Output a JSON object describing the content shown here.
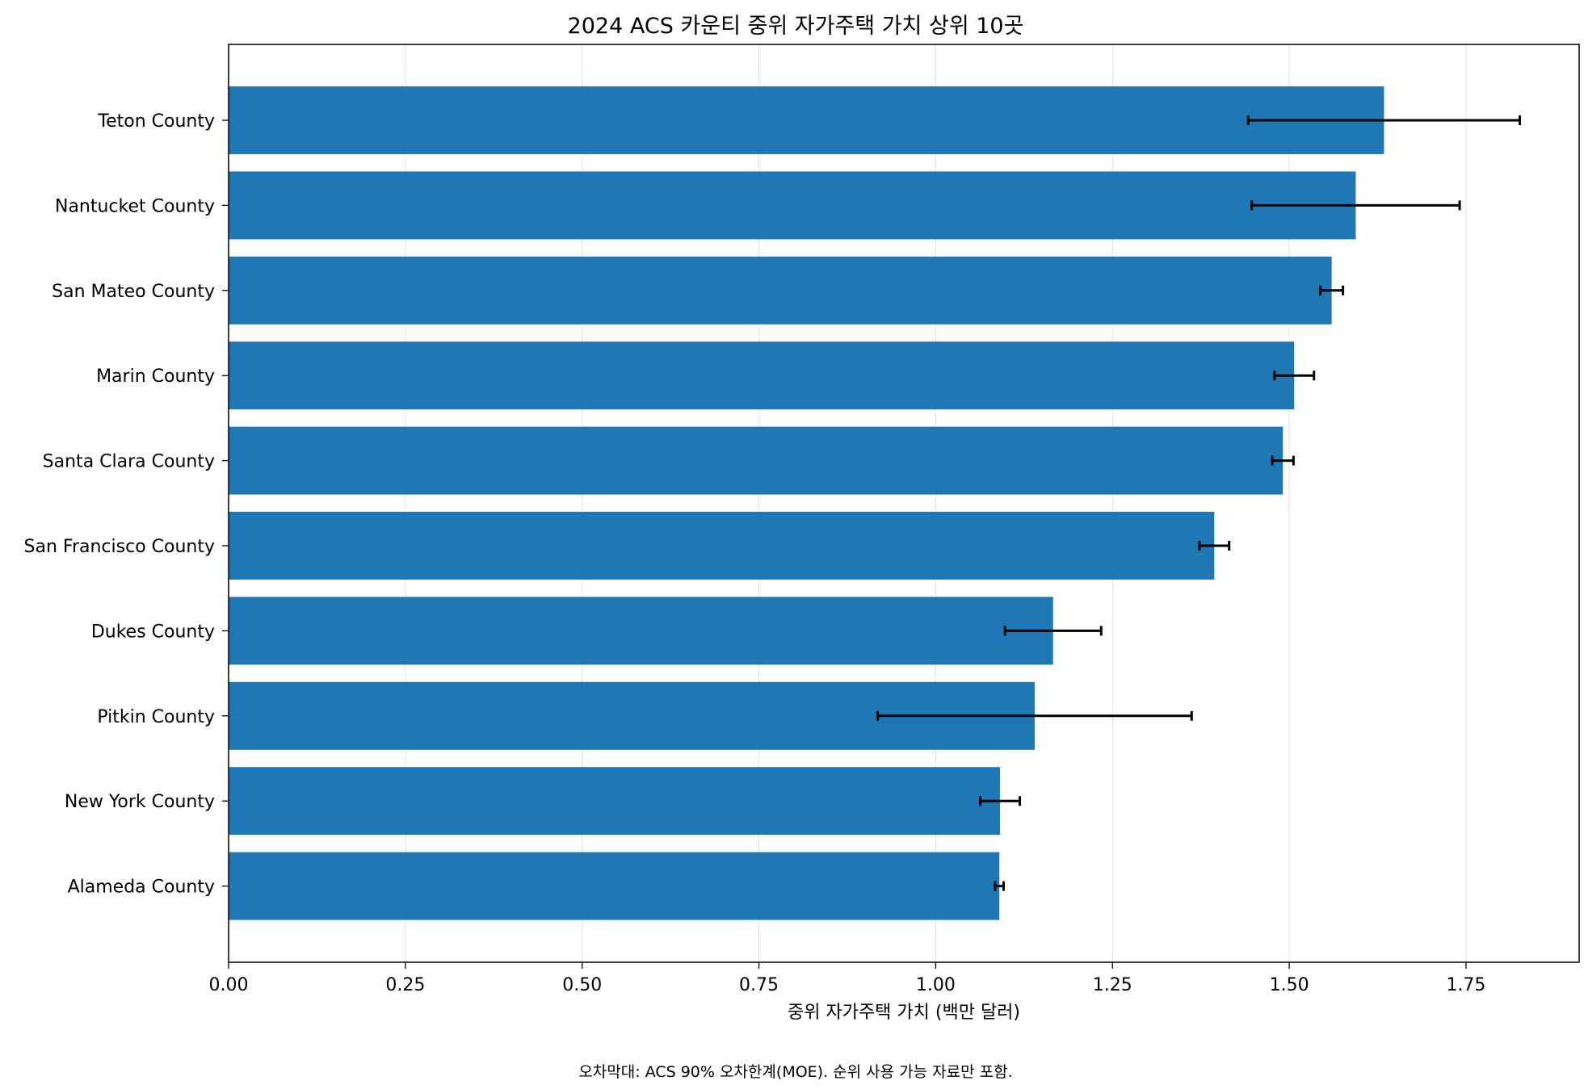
{
  "chart_data": {
    "type": "bar",
    "orientation": "horizontal",
    "title": "2024 ACS 카운티 중위 자가주택 가치 상위 10곳",
    "xlabel": "중위 자가주택 가치 (백만 달러)",
    "ylabel": "",
    "xlim": [
      0,
      1.91
    ],
    "x_ticks": [
      0.0,
      0.25,
      0.5,
      0.75,
      1.0,
      1.25,
      1.5,
      1.75
    ],
    "x_tick_labels": [
      "0.00",
      "0.25",
      "0.50",
      "0.75",
      "1.00",
      "1.25",
      "1.50",
      "1.75"
    ],
    "grid": "x",
    "bar_color": "#1f77b4",
    "error_color": "#000000",
    "categories": [
      "Teton County",
      "Nantucket County",
      "San Mateo County",
      "Marin County",
      "Santa Clara County",
      "San Francisco County",
      "Dukes County",
      "Pitkin County",
      "New York County",
      "Alameda County"
    ],
    "values": [
      1.634,
      1.594,
      1.56,
      1.507,
      1.491,
      1.394,
      1.166,
      1.14,
      1.091,
      1.09
    ],
    "errors": [
      0.192,
      0.147,
      0.016,
      0.028,
      0.015,
      0.021,
      0.068,
      0.222,
      0.028,
      0.006
    ],
    "error_label": "ACS 90% MOE"
  },
  "footnote": "오차막대: ACS 90% 오차한계(MOE). 순위 사용 가능 자료만 포함."
}
